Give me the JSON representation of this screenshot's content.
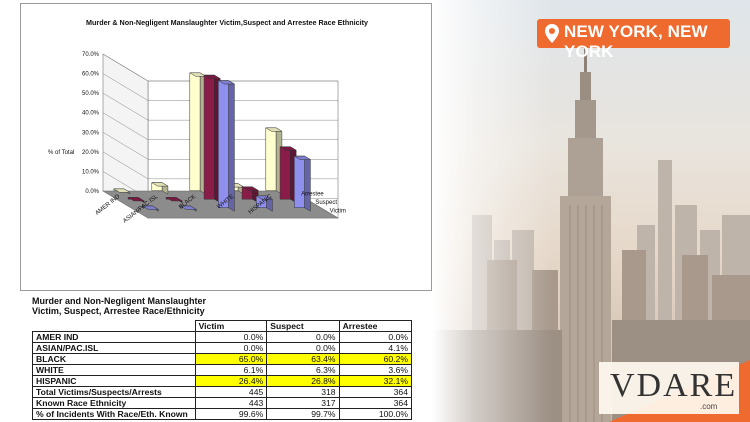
{
  "chart_data": {
    "type": "bar",
    "title": "Murder & Non-Negligent Manslaughter Victim,Suspect and Arrestee Race Ethnicity",
    "ylabel": "% of Total",
    "yticks": [
      "0.0%",
      "10.0%",
      "20.0%",
      "30.0%",
      "40.0%",
      "50.0%",
      "60.0%",
      "70.0%"
    ],
    "ylim": [
      0,
      70
    ],
    "categories": [
      "AMER IND",
      "ASIAN/PAC.ISL",
      "BLACK",
      "WHITE",
      "HISPANIC"
    ],
    "series": [
      {
        "name": "Victim",
        "color": "#8f8fee",
        "values": [
          0.0,
          0.0,
          65.0,
          6.1,
          26.4
        ]
      },
      {
        "name": "Suspect",
        "color": "#8a1c4a",
        "values": [
          0.0,
          0.0,
          63.4,
          6.3,
          26.8
        ]
      },
      {
        "name": "Arrestee",
        "color": "#ffffcf",
        "values": [
          0.0,
          4.1,
          60.2,
          3.6,
          32.1
        ]
      }
    ],
    "grid": true,
    "style": "3d-column"
  },
  "table": {
    "title_line1": "Murder and Non-Negligent Manslaughter",
    "title_line2": "Victim, Suspect, Arrestee Race/Ethnicity",
    "headers": [
      "",
      "Victim",
      "Suspect",
      "Arrestee"
    ],
    "rows": [
      {
        "label": "AMER IND",
        "values": [
          "0.0%",
          "0.0%",
          "0.0%"
        ],
        "highlight": false
      },
      {
        "label": "ASIAN/PAC.ISL",
        "values": [
          "0.0%",
          "0.0%",
          "4.1%"
        ],
        "highlight": false
      },
      {
        "label": "BLACK",
        "values": [
          "65.0%",
          "63.4%",
          "60.2%"
        ],
        "highlight": true
      },
      {
        "label": "WHITE",
        "values": [
          "6.1%",
          "6.3%",
          "3.6%"
        ],
        "highlight": false
      },
      {
        "label": "HISPANIC",
        "values": [
          "26.4%",
          "26.8%",
          "32.1%"
        ],
        "highlight": true
      },
      {
        "label": "Total Victims/Suspects/Arrests",
        "values": [
          "445",
          "318",
          "364"
        ],
        "highlight": false
      },
      {
        "label": "Known Race Ethnicity",
        "values": [
          "443",
          "317",
          "364"
        ],
        "highlight": false
      },
      {
        "label": "% of Incidents With Race/Eth. Known",
        "values": [
          "99.6%",
          "99.7%",
          "100.0%"
        ],
        "highlight": false
      }
    ]
  },
  "badge": {
    "location": "NEW YORK, NEW YORK",
    "color": "#ef6a2f"
  },
  "logo": {
    "word": "VDARE",
    "dotcom": ".com",
    "accent": "#ef6a2f"
  }
}
